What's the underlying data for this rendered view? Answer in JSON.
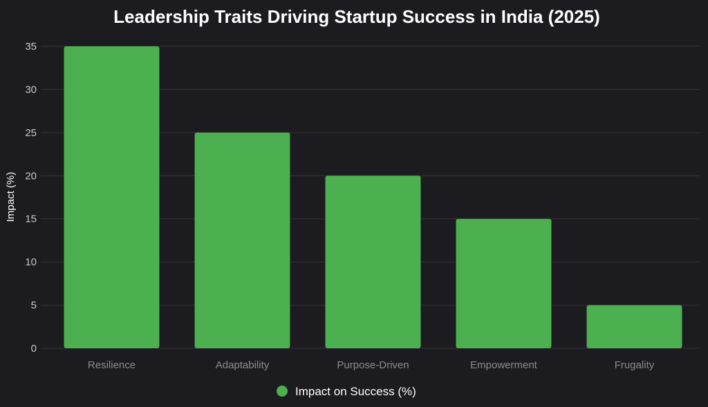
{
  "chart_data": {
    "type": "bar",
    "title": "Leadership Traits Driving Startup Success in India (2025)",
    "xlabel": "",
    "ylabel": "Impact (%)",
    "categories": [
      "Resilience",
      "Adaptability",
      "Purpose-Driven",
      "Empowerment",
      "Frugality"
    ],
    "series": [
      {
        "name": "Impact on Success (%)",
        "values": [
          35,
          25,
          20,
          15,
          5
        ],
        "color": "#4caf50"
      }
    ],
    "ylim": [
      0,
      35
    ],
    "yticks": [
      "0",
      "5",
      "10",
      "15",
      "20",
      "25",
      "30",
      "35"
    ],
    "grid": true,
    "legend": "bottom"
  }
}
